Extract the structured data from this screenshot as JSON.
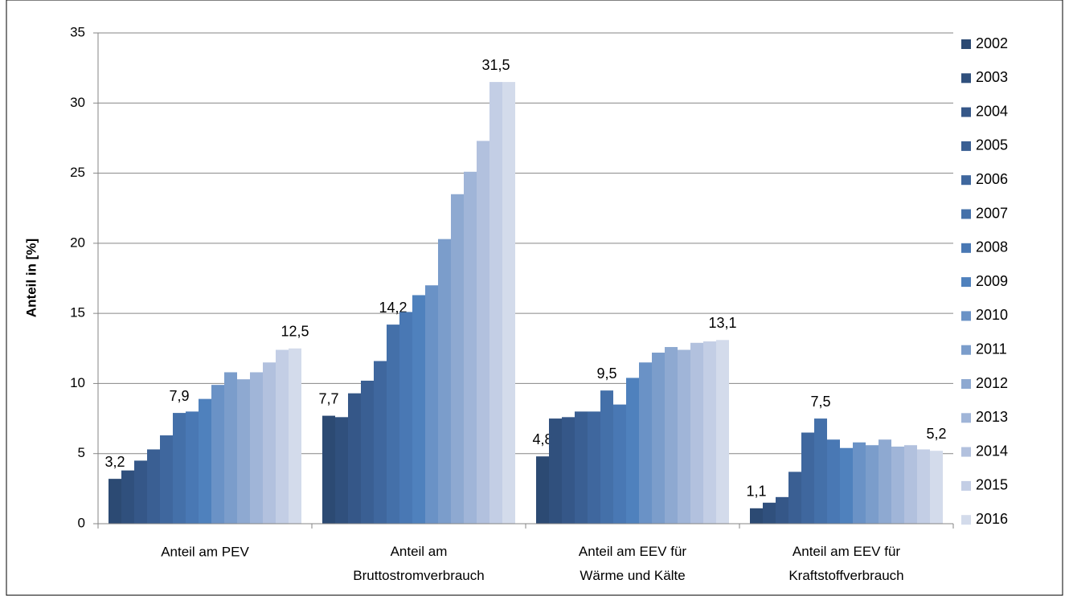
{
  "chart_data": {
    "type": "bar",
    "y_label": "Anteil in [%]",
    "categories": [
      "Anteil am PEV",
      "Anteil am\nBruttostromverbrauch",
      "Anteil am EEV für\nWärme und Kälte",
      "Anteil am EEV für\nKraftstoffverbrauch"
    ],
    "ylim": [
      0,
      35
    ],
    "yticks": [
      0,
      5,
      10,
      15,
      20,
      25,
      30,
      35
    ],
    "grid": true,
    "legend": "right",
    "series": [
      {
        "name": "2002",
        "color": "#2c4a73",
        "values": [
          3.2,
          7.7,
          4.8,
          1.1
        ],
        "value_labels": [
          "3,2",
          "7,7",
          "4,8",
          "1,1"
        ]
      },
      {
        "name": "2003",
        "color": "#30507d",
        "values": [
          3.8,
          7.6,
          7.5,
          1.5
        ]
      },
      {
        "name": "2004",
        "color": "#355788",
        "values": [
          4.5,
          9.3,
          7.6,
          1.9
        ]
      },
      {
        "name": "2005",
        "color": "#3a5f93",
        "values": [
          5.3,
          10.2,
          8.0,
          3.7
        ]
      },
      {
        "name": "2006",
        "color": "#3f679e",
        "values": [
          6.3,
          11.6,
          8.0,
          6.5
        ]
      },
      {
        "name": "2007",
        "color": "#4470a9",
        "values": [
          7.9,
          14.2,
          9.5,
          7.5
        ],
        "value_labels": [
          "7,9",
          "14,2",
          "9,5",
          "7,5"
        ]
      },
      {
        "name": "2008",
        "color": "#4978b4",
        "values": [
          8.0,
          15.1,
          8.5,
          6.0
        ]
      },
      {
        "name": "2009",
        "color": "#4f81bd",
        "values": [
          8.9,
          16.3,
          10.4,
          5.4
        ]
      },
      {
        "name": "2010",
        "color": "#6a92c6",
        "values": [
          9.9,
          17.0,
          11.5,
          5.8
        ]
      },
      {
        "name": "2011",
        "color": "#7b9dcb",
        "values": [
          10.8,
          20.3,
          12.2,
          5.6
        ]
      },
      {
        "name": "2012",
        "color": "#8ea9d1",
        "values": [
          10.3,
          23.5,
          12.6,
          6.0
        ]
      },
      {
        "name": "2013",
        "color": "#a0b5d8",
        "values": [
          10.8,
          25.1,
          12.4,
          5.5
        ]
      },
      {
        "name": "2014",
        "color": "#b2c1de",
        "values": [
          11.5,
          27.3,
          12.9,
          5.6
        ]
      },
      {
        "name": "2015",
        "color": "#c3cee5",
        "values": [
          12.4,
          31.5,
          13.0,
          5.3
        ],
        "value_labels": [
          null,
          "31,5",
          null,
          null
        ]
      },
      {
        "name": "2016",
        "color": "#d3dbeb",
        "values": [
          12.5,
          31.5,
          13.1,
          5.2
        ],
        "value_labels": [
          "12,5",
          null,
          "13,1",
          "5,2"
        ]
      }
    ]
  }
}
